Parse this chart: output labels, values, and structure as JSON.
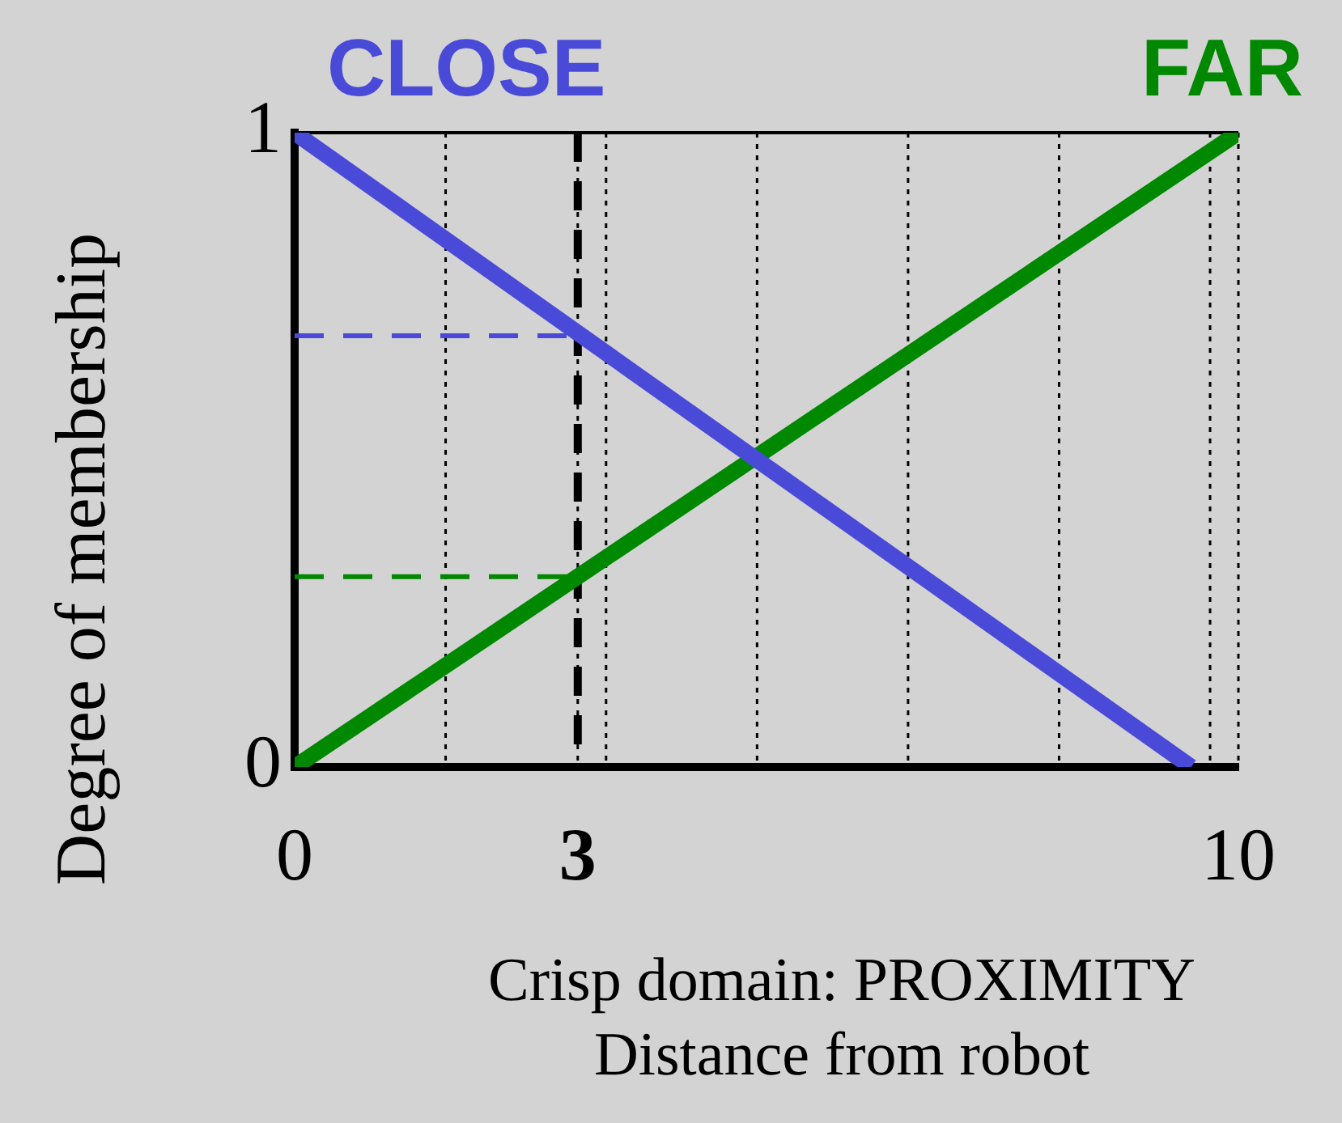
{
  "chart_data": {
    "type": "line",
    "xlabel": "Crisp domain: PROXIMITY Distance from robot",
    "ylabel": "Degree of membership",
    "series": [
      {
        "name": "CLOSE",
        "color": "#4a4ad8",
        "x": [
          0,
          9.5
        ],
        "values": [
          1,
          0
        ]
      },
      {
        "name": "FAR",
        "color": "#008800",
        "x": [
          0,
          10
        ],
        "values": [
          0,
          1
        ]
      }
    ],
    "xlim": [
      0,
      10
    ],
    "ylim": [
      0,
      1
    ],
    "xticks": [
      0,
      {
        "value": 1.6,
        "label": null
      },
      3,
      {
        "value": 3.3,
        "label": null
      },
      {
        "value": 4.9,
        "label": null
      },
      {
        "value": 6.5,
        "label": null
      },
      {
        "value": 8.1,
        "label": null
      },
      {
        "value": 9.7,
        "label": null
      },
      10
    ],
    "yticks": [
      0,
      1
    ],
    "grid": "x",
    "legend": false,
    "marker": "none",
    "line_style": "solid",
    "ref_lines": [
      {
        "axis": "x",
        "value": 3,
        "color": "#000000",
        "line_style": "dashed"
      },
      {
        "axis": "y",
        "value": 0.68,
        "color": "#4a4ad8",
        "line_style": "dashed"
      },
      {
        "axis": "y",
        "value": 0.3,
        "color": "#008800",
        "line_style": "dashed"
      }
    ]
  }
}
